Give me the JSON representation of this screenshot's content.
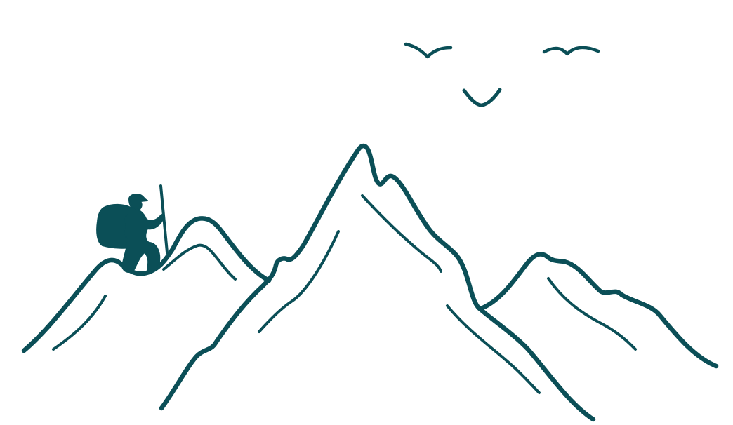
{
  "illustration": {
    "subject": "",
    "colors": {
      "ink": "#0b4f57",
      "background": "#ffffff"
    },
    "elements": {
      "hiker": "hiker-with-backpack-and-trekking-pole",
      "mountains": "mountain-range-line-art",
      "birds": "flying-birds"
    }
  }
}
